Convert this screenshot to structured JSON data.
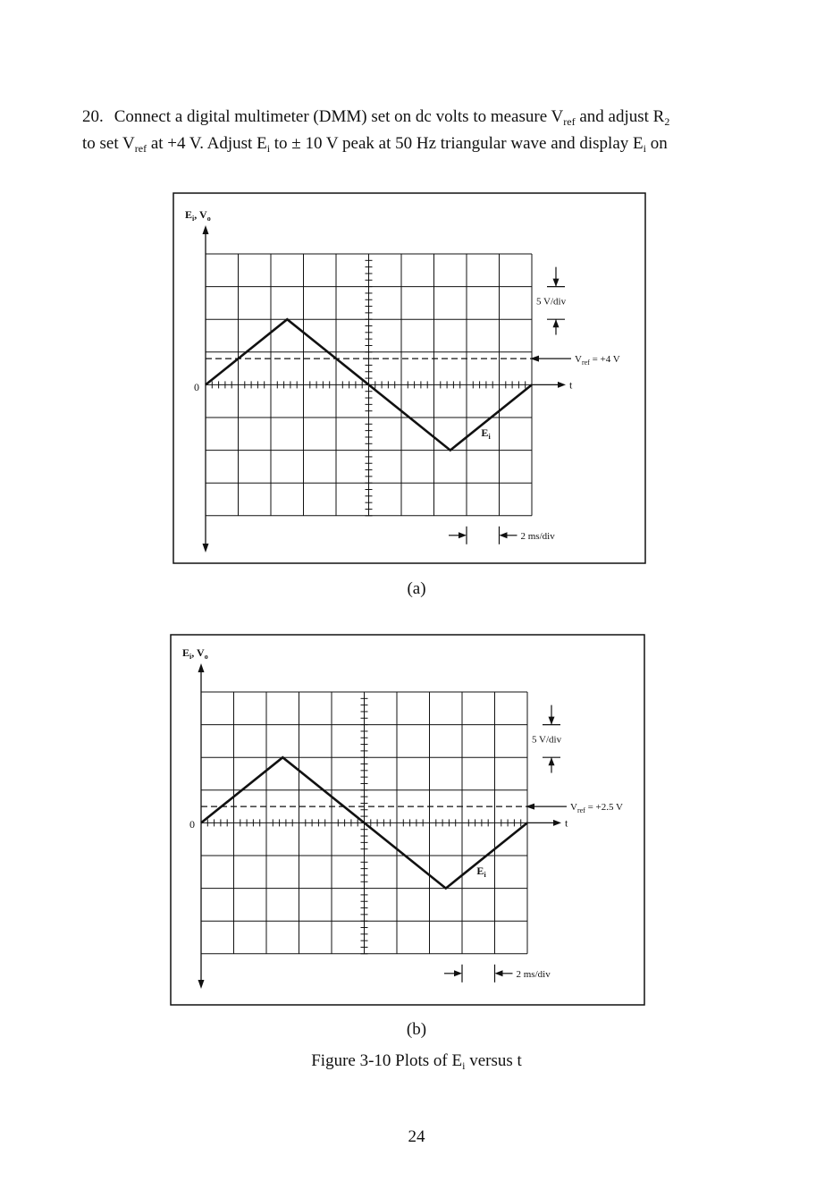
{
  "paragraph": {
    "number": "20.",
    "line1_parts": [
      "Connect a digital multimeter (DMM) set on dc volts to measure V",
      "ref",
      " and adjust R",
      "2"
    ],
    "line2_parts": [
      "to set V",
      "ref",
      " at +4 V. Adjust E",
      "i",
      " to ± 10 V peak at 50 Hz triangular wave and display E",
      "i",
      " on"
    ]
  },
  "figures": [
    {
      "id": "a",
      "label": "(a)",
      "y_axis_label": "E",
      "y_axis_sub1": "i",
      "y_axis_sep": ", V",
      "y_axis_sub2": "o",
      "origin_label": "0",
      "t_label": "t",
      "trace_label": "E",
      "trace_label_sub": "i",
      "vscale_label": "5 V/div",
      "hscale_label": "2 ms/div",
      "vref_prefix": "V",
      "vref_sub": "ref",
      "vref_suffix": " = +4 V",
      "chart_data": {
        "type": "line",
        "x_unit": "ms",
        "y_unit": "V",
        "xlim": [
          0,
          20
        ],
        "ylim": [
          -20,
          20
        ],
        "series": [
          {
            "name": "Ei",
            "x": [
              0,
              5,
              15,
              20
            ],
            "y": [
              0,
              10,
              -10,
              0
            ]
          }
        ],
        "reference_line": {
          "y": 4,
          "style": "dashed"
        },
        "grid": true
      }
    },
    {
      "id": "b",
      "label": "(b)",
      "y_axis_label": "E",
      "y_axis_sub1": "i",
      "y_axis_sep": ", V",
      "y_axis_sub2": "o",
      "origin_label": "0",
      "t_label": "t",
      "trace_label": "E",
      "trace_label_sub": "i",
      "vscale_label": "5 V/div",
      "hscale_label": "2 ms/div",
      "vref_prefix": "V",
      "vref_sub": "ref",
      "vref_suffix": " = +2.5 V",
      "chart_data": {
        "type": "line",
        "x_unit": "ms",
        "y_unit": "V",
        "xlim": [
          0,
          20
        ],
        "ylim": [
          -20,
          20
        ],
        "series": [
          {
            "name": "Ei",
            "x": [
              0,
              5,
              15,
              20
            ],
            "y": [
              0,
              10,
              -10,
              0
            ]
          }
        ],
        "reference_line": {
          "y": 2.5,
          "style": "dashed"
        },
        "grid": true
      }
    }
  ],
  "caption": {
    "parts": [
      "Figure 3-10 Plots of E",
      "i",
      " versus t"
    ]
  },
  "page_number": "24"
}
